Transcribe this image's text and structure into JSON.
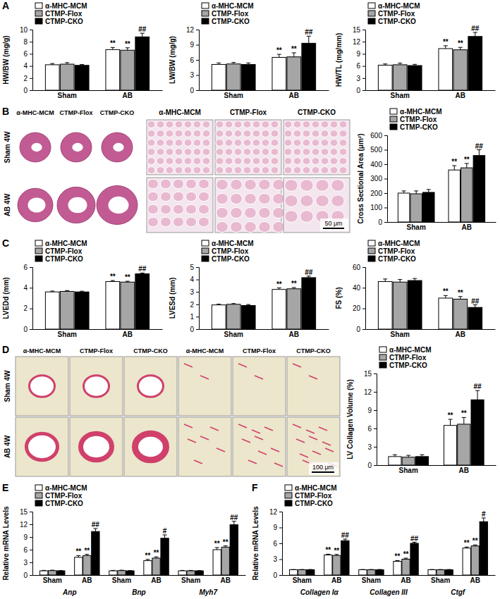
{
  "chart_data": [
    {
      "type": "bar",
      "title": "A",
      "y_label": "HW/BW (mg/g)",
      "categories": [
        "Sham",
        "AB"
      ],
      "ylim": [
        0,
        10
      ],
      "yticks": [
        0,
        2,
        4,
        6,
        8,
        10
      ],
      "legend": "top-left",
      "series": [
        {
          "name": "α-MHC-MCM",
          "color": "#ffffff",
          "values": [
            4.2,
            6.7
          ],
          "errors": [
            0.2,
            0.35
          ],
          "annotations": [
            null,
            "**"
          ]
        },
        {
          "name": "CTMP-Flox",
          "color": "#a6a6a6",
          "values": [
            4.3,
            6.6
          ],
          "errors": [
            0.25,
            0.4
          ],
          "annotations": [
            null,
            "**"
          ]
        },
        {
          "name": "CTMP-CKO",
          "color": "#000000",
          "values": [
            4.1,
            8.8
          ],
          "errors": [
            0.15,
            0.6
          ],
          "annotations": [
            null,
            "##"
          ]
        }
      ]
    },
    {
      "type": "bar",
      "y_label": "LW/BW (mg/g)",
      "categories": [
        "Sham",
        "AB"
      ],
      "ylim": [
        0,
        12
      ],
      "yticks": [
        0,
        3,
        6,
        9,
        12
      ],
      "legend": "top-left",
      "series": [
        {
          "name": "α-MHC-MCM",
          "color": "#ffffff",
          "values": [
            5.1,
            6.5
          ],
          "errors": [
            0.3,
            0.6
          ],
          "annotations": [
            null,
            "**"
          ]
        },
        {
          "name": "CTMP-Flox",
          "color": "#a6a6a6",
          "values": [
            5.2,
            6.6
          ],
          "errors": [
            0.3,
            0.8
          ],
          "annotations": [
            null,
            "**"
          ]
        },
        {
          "name": "CTMP-CKO",
          "color": "#000000",
          "values": [
            5.1,
            9.3
          ],
          "errors": [
            0.3,
            1.4
          ],
          "annotations": [
            null,
            "##"
          ]
        }
      ]
    },
    {
      "type": "bar",
      "y_label": "HW/TL (mg/mm)",
      "categories": [
        "Sham",
        "AB"
      ],
      "ylim": [
        0,
        15
      ],
      "yticks": [
        0,
        3,
        6,
        9,
        12,
        15
      ],
      "legend": "top-left",
      "series": [
        {
          "name": "α-MHC-MCM",
          "color": "#ffffff",
          "values": [
            6.2,
            10.3
          ],
          "errors": [
            0.3,
            0.7
          ],
          "annotations": [
            null,
            "**"
          ]
        },
        {
          "name": "CTMP-Flox",
          "color": "#a6a6a6",
          "values": [
            6.3,
            10.0
          ],
          "errors": [
            0.4,
            0.6
          ],
          "annotations": [
            null,
            "**"
          ]
        },
        {
          "name": "CTMP-CKO",
          "color": "#000000",
          "values": [
            6.1,
            13.3
          ],
          "errors": [
            0.3,
            1.0
          ],
          "annotations": [
            null,
            "##"
          ]
        }
      ]
    },
    {
      "type": "bar",
      "y_label": "Cross Sectional Area (μm²)",
      "categories": [
        "Sham",
        "AB"
      ],
      "ylim": [
        0,
        600
      ],
      "yticks": [
        0,
        100,
        200,
        300,
        400,
        500,
        600
      ],
      "legend": "top-left",
      "series": [
        {
          "name": "α-MHC-MCM",
          "color": "#ffffff",
          "values": [
            200,
            360
          ],
          "errors": [
            15,
            30
          ],
          "annotations": [
            null,
            "**"
          ]
        },
        {
          "name": "CTMP-Flox",
          "color": "#a6a6a6",
          "values": [
            195,
            375
          ],
          "errors": [
            20,
            30
          ],
          "annotations": [
            null,
            "**"
          ]
        },
        {
          "name": "CTMP-CKO",
          "color": "#000000",
          "values": [
            205,
            460
          ],
          "errors": [
            20,
            40
          ],
          "annotations": [
            null,
            "##"
          ]
        }
      ]
    },
    {
      "type": "bar",
      "title": "C",
      "y_label": "LVEDd (mm)",
      "categories": [
        "Sham",
        "AB"
      ],
      "ylim": [
        0,
        6
      ],
      "yticks": [
        0,
        2,
        4,
        6
      ],
      "legend": "top-left",
      "series": [
        {
          "name": "α-MHC-MCM",
          "color": "#ffffff",
          "values": [
            3.6,
            4.6
          ],
          "errors": [
            0.08,
            0.1
          ],
          "annotations": [
            null,
            "**"
          ]
        },
        {
          "name": "CTMP-Flox",
          "color": "#a6a6a6",
          "values": [
            3.65,
            4.55
          ],
          "errors": [
            0.08,
            0.08
          ],
          "annotations": [
            null,
            "**"
          ]
        },
        {
          "name": "CTMP-CKO",
          "color": "#000000",
          "values": [
            3.6,
            5.35
          ],
          "errors": [
            0.07,
            0.08
          ],
          "annotations": [
            null,
            "##"
          ]
        }
      ]
    },
    {
      "type": "bar",
      "y_label": "LVESd (mm)",
      "categories": [
        "Sham",
        "AB"
      ],
      "ylim": [
        0,
        5
      ],
      "yticks": [
        0,
        1,
        2,
        3,
        4,
        5
      ],
      "legend": "top-left",
      "series": [
        {
          "name": "α-MHC-MCM",
          "color": "#ffffff",
          "values": [
            1.95,
            3.2
          ],
          "errors": [
            0.06,
            0.12
          ],
          "annotations": [
            null,
            "**"
          ]
        },
        {
          "name": "CTMP-Flox",
          "color": "#a6a6a6",
          "values": [
            2.0,
            3.25
          ],
          "errors": [
            0.06,
            0.1
          ],
          "annotations": [
            null,
            "**"
          ]
        },
        {
          "name": "CTMP-CKO",
          "color": "#000000",
          "values": [
            1.9,
            4.15
          ],
          "errors": [
            0.08,
            0.12
          ],
          "annotations": [
            null,
            "##"
          ]
        }
      ]
    },
    {
      "type": "bar",
      "y_label": "FS (%)",
      "categories": [
        "Sham",
        "AB"
      ],
      "ylim": [
        0,
        60
      ],
      "yticks": [
        0,
        20,
        40,
        60
      ],
      "legend": "top-left",
      "series": [
        {
          "name": "α-MHC-MCM",
          "color": "#ffffff",
          "values": [
            46,
            30
          ],
          "errors": [
            2.5,
            2.5
          ],
          "annotations": [
            null,
            "**"
          ]
        },
        {
          "name": "CTMP-Flox",
          "color": "#a6a6a6",
          "values": [
            45.5,
            29
          ],
          "errors": [
            2.5,
            2.5
          ],
          "annotations": [
            null,
            "**"
          ]
        },
        {
          "name": "CTMP-CKO",
          "color": "#000000",
          "values": [
            47,
            21
          ],
          "errors": [
            2,
            2.5
          ],
          "annotations": [
            null,
            "##"
          ]
        }
      ]
    },
    {
      "type": "bar",
      "y_label": "LV Collagen Volume (%)",
      "categories": [
        "Sham",
        "AB"
      ],
      "ylim": [
        0,
        15
      ],
      "yticks": [
        0,
        3,
        6,
        9,
        12,
        15
      ],
      "legend": "top-left",
      "series": [
        {
          "name": "α-MHC-MCM",
          "color": "#ffffff",
          "values": [
            1.4,
            6.5
          ],
          "errors": [
            0.3,
            1.0
          ],
          "annotations": [
            null,
            "**"
          ]
        },
        {
          "name": "CTMP-Flox",
          "color": "#a6a6a6",
          "values": [
            1.3,
            6.7
          ],
          "errors": [
            0.3,
            1.1
          ],
          "annotations": [
            null,
            "**"
          ]
        },
        {
          "name": "CTMP-CKO",
          "color": "#000000",
          "values": [
            1.4,
            10.7
          ],
          "errors": [
            0.3,
            1.5
          ],
          "annotations": [
            null,
            "##"
          ]
        }
      ]
    },
    {
      "type": "bar",
      "title": "E",
      "y_label": "Relative mRNA Levels",
      "categories": [
        "Sham",
        "AB",
        "Sham",
        "AB",
        "Sham",
        "AB"
      ],
      "groups": [
        "Anp",
        "Bnp",
        "Myh7"
      ],
      "ylim": [
        0,
        15
      ],
      "yticks": [
        0,
        3,
        6,
        9,
        12,
        15
      ],
      "legend": "top-left",
      "series": [
        {
          "name": "α-MHC-MCM",
          "color": "#ffffff",
          "values": [
            1,
            4.2,
            1,
            3.4,
            1,
            6.0
          ],
          "errors": [
            0.1,
            0.4,
            0.1,
            0.3,
            0.1,
            0.5
          ],
          "annotations": [
            null,
            "**",
            null,
            "**",
            null,
            "**"
          ]
        },
        {
          "name": "CTMP-Flox",
          "color": "#a6a6a6",
          "values": [
            1.05,
            4.6,
            1.05,
            4.0,
            1,
            6.6
          ],
          "errors": [
            0.1,
            0.3,
            0.1,
            0.3,
            0.1,
            0.3
          ],
          "annotations": [
            null,
            "**",
            null,
            "**",
            null,
            "**"
          ]
        },
        {
          "name": "CTMP-CKO",
          "color": "#000000",
          "values": [
            1,
            10.3,
            1,
            8.7,
            1,
            11.9
          ],
          "errors": [
            0.05,
            0.7,
            0.05,
            0.8,
            0.05,
            0.8
          ],
          "annotations": [
            null,
            "##",
            null,
            "#",
            null,
            "##"
          ]
        }
      ]
    },
    {
      "type": "bar",
      "title": "F",
      "y_label": "Relative mRNA Levels",
      "categories": [
        "Sham",
        "AB",
        "Sham",
        "AB",
        "Sham",
        "AB"
      ],
      "groups": [
        "Collagen Iα",
        "Collagen III",
        "Ctgf"
      ],
      "ylim": [
        0,
        12
      ],
      "yticks": [
        0,
        3,
        6,
        9,
        12
      ],
      "legend": "top-left",
      "series": [
        {
          "name": "α-MHC-MCM",
          "color": "#ffffff",
          "values": [
            1,
            3.8,
            1,
            2.6,
            1,
            5.1
          ],
          "errors": [
            0.05,
            0.15,
            0.05,
            0.15,
            0.05,
            0.2
          ],
          "annotations": [
            null,
            "**",
            null,
            "**",
            null,
            "**"
          ]
        },
        {
          "name": "CTMP-Flox",
          "color": "#a6a6a6",
          "values": [
            1,
            3.7,
            1,
            3.0,
            1,
            5.5
          ],
          "errors": [
            0.05,
            0.2,
            0.05,
            0.2,
            0.05,
            0.2
          ],
          "annotations": [
            null,
            "**",
            null,
            "**",
            null,
            "**"
          ]
        },
        {
          "name": "CTMP-CKO",
          "color": "#000000",
          "values": [
            1,
            6.5,
            1,
            6.0,
            1,
            10.1
          ],
          "errors": [
            0.05,
            0.3,
            0.05,
            0.2,
            0.05,
            0.7
          ],
          "annotations": [
            null,
            "##",
            null,
            "##",
            null,
            "#"
          ]
        }
      ]
    }
  ],
  "image_panels": [
    {
      "panel": "B",
      "columns": [
        "α-MHC-MCM",
        "CTMP-Flox",
        "CTMP-CKO"
      ],
      "rows": [
        "Sham 4W",
        "AB 4W"
      ],
      "scale_bar": "50 μm"
    },
    {
      "panel": "D",
      "columns": [
        "α-MHC-MCM",
        "CTMP-Flox",
        "CTMP-CKO"
      ],
      "rows": [
        "Sham 4W",
        "AB 4W"
      ],
      "scale_bar": "100 μm"
    }
  ]
}
